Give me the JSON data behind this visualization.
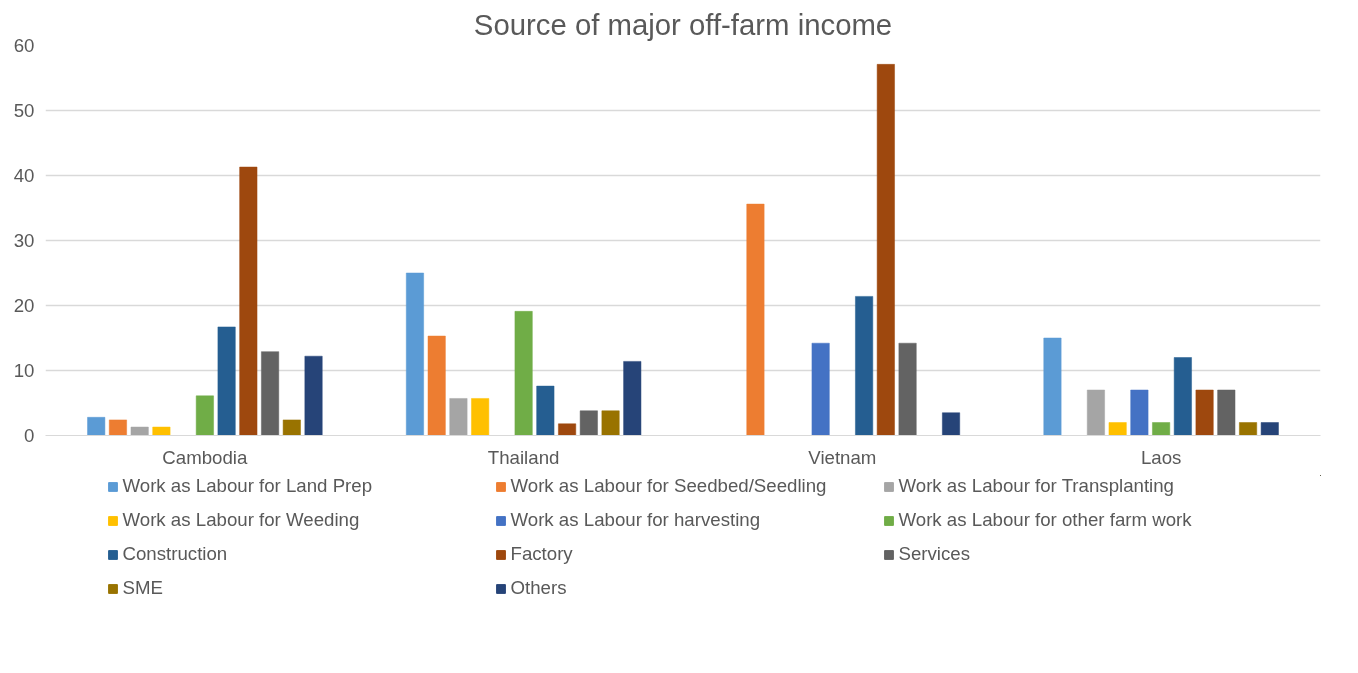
{
  "chart_data": {
    "type": "bar",
    "title": "Source of major off-farm income",
    "categories": [
      "Cambodia",
      "Thailand",
      "Vietnam",
      "Laos"
    ],
    "ylim": [
      0,
      60
    ],
    "yticks": [
      0,
      10,
      20,
      30,
      40,
      50,
      60
    ],
    "grid": "y",
    "legend": "bottom",
    "series": [
      {
        "name": "Work as Labour for Land Prep",
        "color": "#5b9bd5",
        "values": [
          2.8,
          25,
          0,
          15
        ]
      },
      {
        "name": "Work as Labour for Seedbed/Seedling",
        "color": "#ed7d31",
        "values": [
          2.4,
          15.3,
          35.6,
          0
        ]
      },
      {
        "name": "Work as Labour for Transplanting",
        "color": "#a5a5a5",
        "values": [
          1.3,
          5.7,
          0,
          7
        ]
      },
      {
        "name": "Work as Labour for Weeding",
        "color": "#ffc000",
        "values": [
          1.3,
          5.7,
          0,
          2
        ]
      },
      {
        "name": "Work as Labour for harvesting",
        "color": "#4472c4",
        "values": [
          0,
          0,
          14.2,
          7
        ]
      },
      {
        "name": "Work as Labour for other farm work",
        "color": "#70ad47",
        "values": [
          6.1,
          19.1,
          0,
          2
        ]
      },
      {
        "name": "Construction",
        "color": "#255e91",
        "values": [
          16.7,
          7.6,
          21.4,
          12
        ]
      },
      {
        "name": "Factory",
        "color": "#9e480e",
        "values": [
          41.3,
          1.8,
          57.1,
          7
        ]
      },
      {
        "name": "Services",
        "color": "#636363",
        "values": [
          12.9,
          3.8,
          14.2,
          7
        ]
      },
      {
        "name": "SME",
        "color": "#997300",
        "values": [
          2.4,
          3.8,
          0,
          2
        ]
      },
      {
        "name": "Others",
        "color": "#264478",
        "values": [
          12.2,
          11.4,
          3.5,
          2
        ]
      }
    ]
  }
}
